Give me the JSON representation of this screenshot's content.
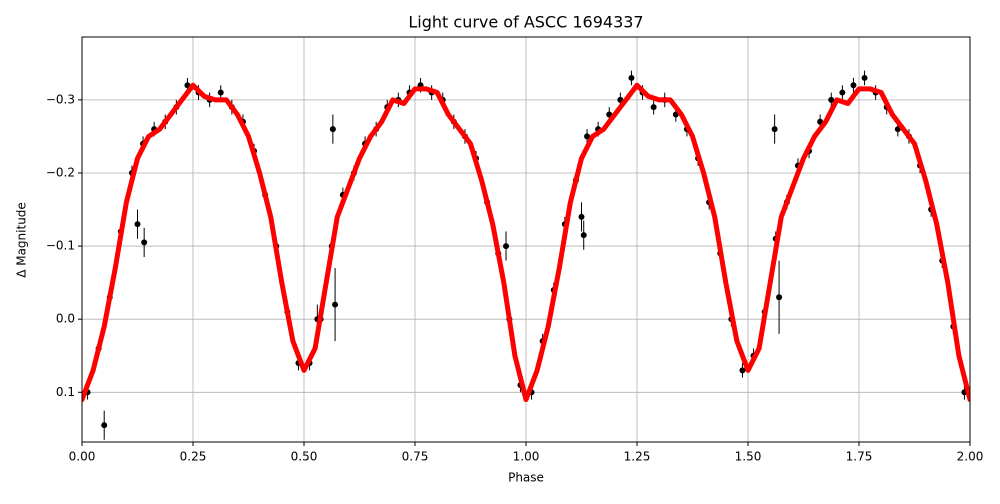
{
  "chart_data": {
    "type": "scatter",
    "title": "Light curve of ASCC 1694337",
    "x_label": "Phase",
    "y_label": "Δ Magnitude",
    "xlim": [
      0,
      2
    ],
    "ylim": [
      -0.386,
      0.168
    ],
    "y_inverted": true,
    "grid": true,
    "xticks": [
      {
        "value": 0,
        "label": "0.00"
      },
      {
        "value": 0.25,
        "label": "0.25"
      },
      {
        "value": 0.5,
        "label": "0.50"
      },
      {
        "value": 0.75,
        "label": "0.75"
      },
      {
        "value": 1,
        "label": "1.00"
      },
      {
        "value": 1.25,
        "label": "1.25"
      },
      {
        "value": 1.5,
        "label": "1.50"
      },
      {
        "value": 1.75,
        "label": "1.75"
      },
      {
        "value": 2,
        "label": "2.00"
      }
    ],
    "yticks": [
      {
        "value": -0.3,
        "label": "−0.3"
      },
      {
        "value": -0.2,
        "label": "−0.2"
      },
      {
        "value": -0.1,
        "label": "−0.1"
      },
      {
        "value": 0,
        "label": "0.0"
      },
      0.1
    ],
    "scatter": {
      "color": "#000000",
      "x": [
        0.0125,
        0.0375,
        0.0625,
        0.0875,
        0.1125,
        0.1375,
        0.1625,
        0.1875,
        0.2125,
        0.2375,
        0.2625,
        0.2875,
        0.3125,
        0.3375,
        0.3625,
        0.3875,
        0.4125,
        0.4375,
        0.4625,
        0.4875,
        0.5125,
        0.5375,
        0.5625,
        0.5875,
        0.6125,
        0.6375,
        0.6625,
        0.6875,
        0.7125,
        0.7375,
        0.7625,
        0.7875,
        0.8125,
        0.8375,
        0.8625,
        0.8875,
        0.9125,
        0.9375,
        0.9625,
        0.9875,
        1.0125,
        1.0375,
        1.0625,
        1.0875,
        1.1125,
        1.1375,
        1.1625,
        1.1875,
        1.2125,
        1.2375,
        1.2625,
        1.2875,
        1.3125,
        1.3375,
        1.3625,
        1.3875,
        1.4125,
        1.4375,
        1.4625,
        1.4875,
        1.5125,
        1.5375,
        1.5625,
        1.5875,
        1.6125,
        1.6375,
        1.6625,
        1.6875,
        1.7125,
        1.7375,
        1.7625,
        1.7875,
        1.8125,
        1.8375,
        1.8625,
        1.8875,
        1.9125,
        1.9375,
        1.9625,
        1.9875,
        0.125,
        0.14,
        0.53,
        0.565,
        0.57,
        0.955,
        0.05,
        1.125,
        1.56,
        1.57,
        1.13
      ],
      "values": [
        0.1,
        0.04,
        -0.03,
        -0.12,
        -0.2,
        -0.24,
        -0.26,
        -0.27,
        -0.29,
        -0.32,
        -0.31,
        -0.3,
        -0.31,
        -0.29,
        -0.27,
        -0.23,
        -0.17,
        -0.1,
        -0.01,
        0.06,
        0.06,
        0,
        -0.1,
        -0.17,
        -0.2,
        -0.24,
        -0.26,
        -0.29,
        -0.3,
        -0.31,
        -0.32,
        -0.31,
        -0.3,
        -0.27,
        -0.25,
        -0.22,
        -0.16,
        -0.09,
        0,
        0.09,
        0.1,
        0.03,
        -0.04,
        -0.13,
        -0.19,
        -0.25,
        -0.26,
        -0.28,
        -0.3,
        -0.33,
        -0.31,
        -0.29,
        -0.3,
        -0.28,
        -0.26,
        -0.22,
        -0.16,
        -0.09,
        0,
        0.07,
        0.05,
        -0.01,
        -0.11,
        -0.16,
        -0.21,
        -0.23,
        -0.27,
        -0.3,
        -0.31,
        -0.32,
        -0.33,
        -0.31,
        -0.29,
        -0.26,
        -0.25,
        -0.21,
        -0.15,
        -0.08,
        0.01,
        0.1,
        -0.13,
        -0.105,
        0.0,
        -0.26,
        -0.02,
        -0.1,
        0.145,
        -0.14,
        -0.26,
        -0.03,
        -0.115
      ],
      "errors": [
        0.01,
        0.01,
        0.01,
        0.01,
        0.01,
        0.01,
        0.01,
        0.01,
        0.01,
        0.01,
        0.01,
        0.01,
        0.01,
        0.01,
        0.01,
        0.01,
        0.01,
        0.01,
        0.01,
        0.01,
        0.01,
        0.01,
        0.01,
        0.01,
        0.01,
        0.01,
        0.01,
        0.01,
        0.01,
        0.01,
        0.01,
        0.01,
        0.01,
        0.01,
        0.01,
        0.01,
        0.01,
        0.01,
        0.01,
        0.01,
        0.01,
        0.01,
        0.01,
        0.01,
        0.01,
        0.01,
        0.01,
        0.01,
        0.01,
        0.01,
        0.01,
        0.01,
        0.01,
        0.01,
        0.01,
        0.01,
        0.01,
        0.01,
        0.01,
        0.01,
        0.01,
        0.01,
        0.01,
        0.01,
        0.01,
        0.01,
        0.01,
        0.01,
        0.01,
        0.01,
        0.01,
        0.01,
        0.01,
        0.01,
        0.01,
        0.01,
        0.01,
        0.01,
        0.01,
        0.01,
        0.02,
        0.02,
        0.02,
        0.02,
        0.05,
        0.02,
        0.02,
        0.02,
        0.02,
        0.05,
        0.02
      ]
    },
    "model": {
      "color": "#ff0000",
      "x": [
        0,
        0.025,
        0.05,
        0.075,
        0.1,
        0.125,
        0.15,
        0.175,
        0.2,
        0.225,
        0.25,
        0.275,
        0.3,
        0.325,
        0.35,
        0.375,
        0.4,
        0.425,
        0.45,
        0.475,
        0.5,
        0.525,
        0.55,
        0.575,
        0.6,
        0.625,
        0.65,
        0.675,
        0.7,
        0.725,
        0.75,
        0.775,
        0.8,
        0.825,
        0.85,
        0.875,
        0.9,
        0.925,
        0.95,
        0.975,
        1,
        1.025,
        1.05,
        1.075,
        1.1,
        1.125,
        1.15,
        1.175,
        1.2,
        1.225,
        1.25,
        1.275,
        1.3,
        1.325,
        1.35,
        1.375,
        1.4,
        1.425,
        1.45,
        1.475,
        1.5,
        1.525,
        1.55,
        1.575,
        1.6,
        1.625,
        1.65,
        1.675,
        1.7,
        1.725,
        1.75,
        1.775,
        1.8,
        1.825,
        1.85,
        1.875,
        1.9,
        1.925,
        1.95,
        1.975,
        2
      ],
      "values": [
        0.11,
        0.07,
        0.01,
        -0.07,
        -0.16,
        -0.22,
        -0.25,
        -0.26,
        -0.28,
        -0.3,
        -0.32,
        -0.305,
        -0.3,
        -0.3,
        -0.28,
        -0.25,
        -0.2,
        -0.14,
        -0.05,
        0.03,
        0.07,
        0.04,
        -0.05,
        -0.14,
        -0.18,
        -0.22,
        -0.25,
        -0.27,
        -0.3,
        -0.295,
        -0.315,
        -0.315,
        -0.31,
        -0.28,
        -0.26,
        -0.24,
        -0.19,
        -0.13,
        -0.05,
        0.05,
        0.11,
        0.07,
        0.01,
        -0.07,
        -0.16,
        -0.22,
        -0.25,
        -0.26,
        -0.28,
        -0.3,
        -0.32,
        -0.305,
        -0.3,
        -0.3,
        -0.28,
        -0.25,
        -0.2,
        -0.14,
        -0.05,
        0.03,
        0.07,
        0.04,
        -0.05,
        -0.14,
        -0.18,
        -0.22,
        -0.25,
        -0.27,
        -0.3,
        -0.295,
        -0.315,
        -0.315,
        -0.31,
        -0.28,
        -0.26,
        -0.24,
        -0.19,
        -0.13,
        -0.05,
        0.05,
        0.11
      ]
    }
  }
}
